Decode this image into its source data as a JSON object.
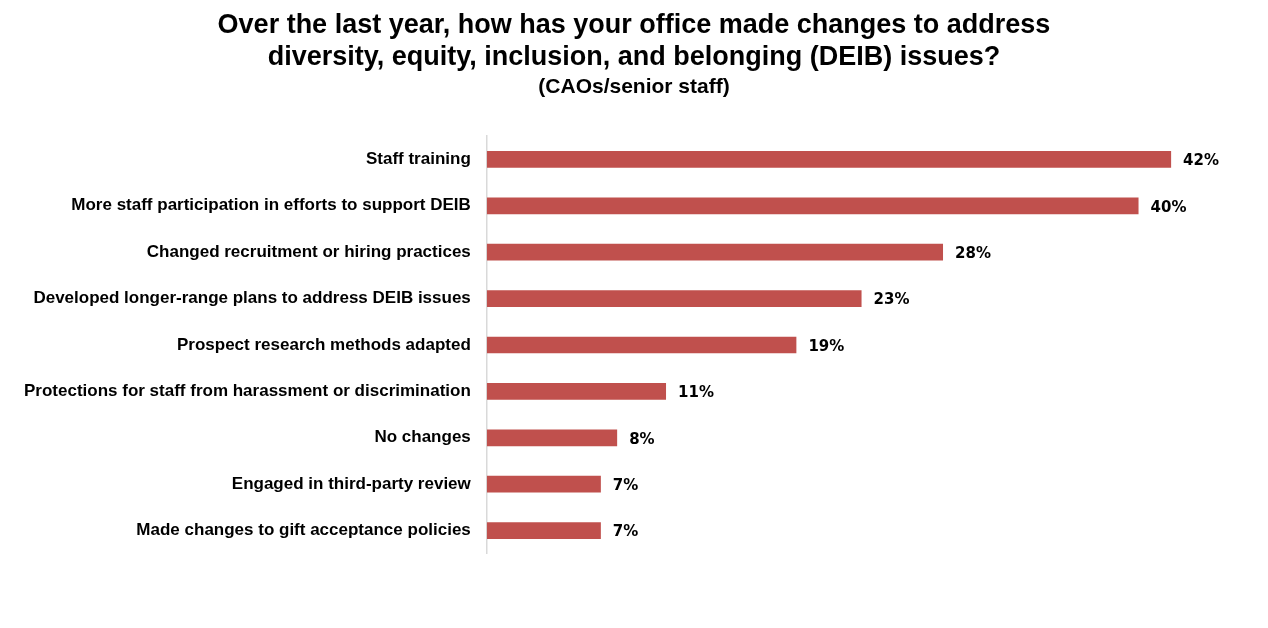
{
  "chart_data": {
    "type": "bar",
    "orientation": "horizontal",
    "title": "Over the last year, how has your office made changes to address diversity, equity, inclusion, and belonging (DEIB) issues?",
    "subtitle": "(CAOs/senior staff)",
    "categories": [
      "Staff training",
      "More staff participation in efforts to support DEIB",
      "Changed recruitment or hiring practices",
      "Developed longer-range plans to address DEIB issues",
      "Prospect research methods adapted",
      "Protections for staff from harassment or discrimination",
      "No changes",
      "Engaged in third-party review",
      "Made changes to gift acceptance policies"
    ],
    "values": [
      42,
      40,
      28,
      23,
      19,
      11,
      8,
      7,
      7
    ],
    "value_labels": [
      "42%",
      "40%",
      "28%",
      "23%",
      "19%",
      "11%",
      "8%",
      "7%",
      "7%"
    ],
    "color": "#c0504d",
    "legend": false
  }
}
